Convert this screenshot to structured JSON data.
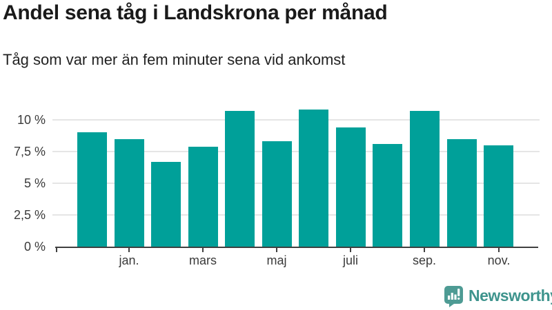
{
  "title": "Andel sena tåg i Landskrona per månad",
  "subtitle": "Tåg som var mer än fem minuter sena vid ankomst",
  "footer": {
    "brand": "Newsworthy",
    "brand_color": "#3E948D",
    "icon": "newsworthy-chart-bubble-icon",
    "icon_color": "#4E9B94"
  },
  "chart_data": {
    "type": "bar",
    "title": "Andel sena tåg i Landskrona per månad",
    "subtitle": "Tåg som var mer än fem minuter sena vid ankomst",
    "values": [
      9.0,
      8.5,
      6.7,
      7.9,
      10.7,
      8.3,
      10.8,
      9.4,
      8.1,
      10.7,
      8.5,
      8.0
    ],
    "unit": "%",
    "x_tick_labels": [
      "jan.",
      "mars",
      "maj",
      "juli",
      "sep.",
      "nov."
    ],
    "x_tick_bar_indexes": [
      1,
      3,
      5,
      7,
      9,
      11
    ],
    "y_tick_labels": [
      "0 %",
      "2,5 %",
      "5 %",
      "7,5 %",
      "10 %"
    ],
    "y_tick_values": [
      0,
      2.5,
      5,
      7.5,
      10
    ],
    "ylim": [
      0,
      11.9
    ],
    "bar_color": "#00A099",
    "gridline_color": "#e5e5e5",
    "axis_color": "#3f3f3f",
    "grid": true,
    "legend": false
  }
}
